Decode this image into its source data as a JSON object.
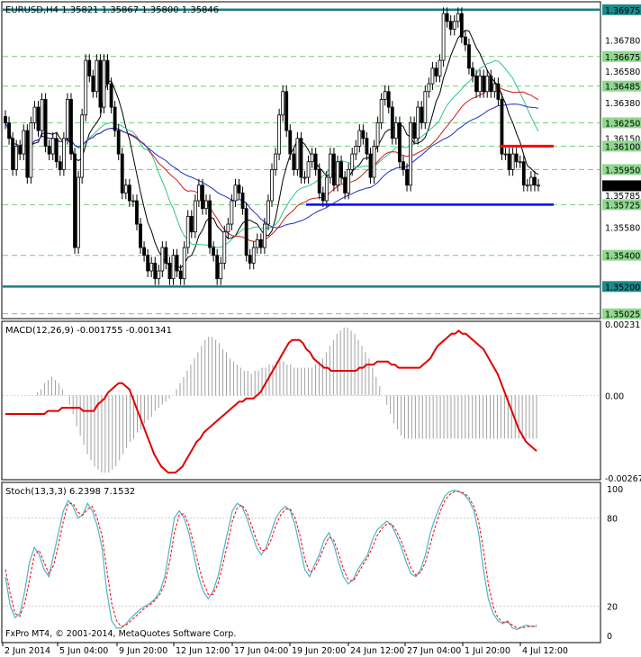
{
  "window": {
    "title": "EURUSD,H4  1.35821 1.35867 1.35800 1.35846"
  },
  "watermark": "FxPro MT4, © 2001-2014, MetaQuotes Software Corp.",
  "colors": {
    "bull": "#000000",
    "bear": "#000000",
    "ma_blue": "#1f2ec8",
    "ma_red": "#d11a1a",
    "ma_green": "#32c48a",
    "ma_black": "#000000",
    "level_teal": "#1b7d7d",
    "support_blue": "#0000ff",
    "resist_red": "#ff0000",
    "dashed_green": "#6fcf6f",
    "macd_line": "#e00000",
    "macd_hist": "#a0a0a0",
    "stoch_main": "#4fb3c8",
    "stoch_signal": "#ff0000",
    "price_box": "#1a8a8a"
  },
  "chart_data": [
    {
      "type": "candlestick",
      "symbol": "EURUSD",
      "timeframe": "H4",
      "last_ohlc": {
        "open": 1.35821,
        "high": 1.35867,
        "low": 1.358,
        "close": 1.35846
      },
      "ylim": [
        1.35,
        1.3702
      ],
      "price_axis_labels": [
        "1.36975",
        "1.36780",
        "1.36675",
        "1.36580",
        "1.36485",
        "1.36380",
        "1.36250",
        "1.36150",
        "1.36100",
        "1.35950",
        "1.35846",
        "1.35785",
        "1.35725",
        "1.35580",
        "1.35400",
        "1.35200",
        "1.35025"
      ],
      "highlighted_levels": [
        {
          "label": "1.36975",
          "price": 1.36975,
          "kind": "solid"
        },
        {
          "label": "1.36675",
          "price": 1.36675,
          "kind": "dashed"
        },
        {
          "label": "1.36485",
          "price": 1.36485,
          "kind": "dashed"
        },
        {
          "label": "1.36250",
          "price": 1.3625,
          "kind": "dashed"
        },
        {
          "label": "1.36100",
          "price": 1.361,
          "kind": "dashed"
        },
        {
          "label": "1.35950",
          "price": 1.3595,
          "kind": "dashed"
        },
        {
          "label": "1.35725",
          "price": 1.35725,
          "kind": "dashed"
        },
        {
          "label": "1.35400",
          "price": 1.354,
          "kind": "dashed"
        },
        {
          "label": "1.35200",
          "price": 1.352,
          "kind": "solid"
        },
        {
          "label": "1.35025",
          "price": 1.35025,
          "kind": "dashed"
        }
      ],
      "current_price_label": "1.35846",
      "support_line_price": 1.35725,
      "resistance_line_price": 1.361,
      "x_tick_labels": [
        "2 Jun 2014",
        "5 Jun 04:00",
        "9 Jun 20:00",
        "12 Jun 12:00",
        "17 Jun 04:00",
        "19 Jun 20:00",
        "24 Jun 12:00",
        "27 Jun 04:00",
        "1 Jul 20:00",
        "4 Jul 12:00"
      ],
      "closes": [
        1.3625,
        1.3615,
        1.3595,
        1.361,
        1.3605,
        1.362,
        1.359,
        1.3625,
        1.3635,
        1.362,
        1.364,
        1.361,
        1.3605,
        1.3615,
        1.36,
        1.3595,
        1.3615,
        1.364,
        1.3605,
        1.3545,
        1.359,
        1.363,
        1.3665,
        1.3655,
        1.3645,
        1.3665,
        1.3635,
        1.3665,
        1.365,
        1.3635,
        1.362,
        1.3605,
        1.358,
        1.3585,
        1.3575,
        1.3575,
        1.356,
        1.3545,
        1.354,
        1.353,
        1.3535,
        1.3525,
        1.353,
        1.3545,
        1.3535,
        1.3525,
        1.354,
        1.353,
        1.3525,
        1.3545,
        1.3565,
        1.3555,
        1.3575,
        1.3585,
        1.357,
        1.3575,
        1.3545,
        1.354,
        1.3525,
        1.3535,
        1.3555,
        1.356,
        1.3575,
        1.3585,
        1.358,
        1.357,
        1.354,
        1.3535,
        1.3545,
        1.355,
        1.3545,
        1.356,
        1.3575,
        1.3595,
        1.3605,
        1.363,
        1.3645,
        1.362,
        1.3605,
        1.3595,
        1.3615,
        1.359,
        1.359,
        1.36,
        1.3605,
        1.3595,
        1.358,
        1.3575,
        1.359,
        1.3605,
        1.3585,
        1.36,
        1.359,
        1.358,
        1.3595,
        1.3605,
        1.361,
        1.362,
        1.3615,
        1.3605,
        1.359,
        1.361,
        1.3625,
        1.364,
        1.3645,
        1.3635,
        1.3615,
        1.3625,
        1.36,
        1.3595,
        1.3585,
        1.3625,
        1.3615,
        1.3635,
        1.3625,
        1.3645,
        1.365,
        1.366,
        1.3655,
        1.3665,
        1.3695,
        1.369,
        1.3685,
        1.369,
        1.3695,
        1.368,
        1.3675,
        1.366,
        1.3655,
        1.3645,
        1.3655,
        1.3645,
        1.3655,
        1.3645,
        1.365,
        1.364,
        1.3605,
        1.3605,
        1.3595,
        1.3605,
        1.36,
        1.36,
        1.3585,
        1.3585,
        1.359,
        1.3585,
        1.3585
      ]
    },
    {
      "type": "line",
      "indicator": "MACD",
      "label": "MACD(12,26,9) -0.001755 -0.001341",
      "axis_labels": [
        "0.002316",
        "0.00",
        "-0.002671"
      ],
      "ylim": [
        -0.002671,
        0.002316
      ],
      "series": [
        {
          "values": [
            -0.0006,
            -0.0006,
            -0.0006,
            -0.0006,
            -0.0006,
            -0.0006,
            -0.0006,
            -0.0006,
            -0.0006,
            -0.0006,
            -0.0006,
            -0.0006,
            -0.0005,
            -0.0005,
            -0.0005,
            -0.0005,
            -0.0004,
            -0.0004,
            -0.0004,
            -0.0004,
            -0.0004,
            -0.0004,
            -0.0005,
            -0.0005,
            -0.0005,
            -0.0005,
            -0.0003,
            -0.0002,
            -0.0001,
            0.0001,
            0.0002,
            0.0003,
            0.0004,
            0.0004,
            0.0003,
            0.0002,
            -0.0001,
            -0.0004,
            -0.0007,
            -0.001,
            -0.0013,
            -0.0016,
            -0.0019,
            -0.0021,
            -0.0023,
            -0.0024,
            -0.0025,
            -0.0025,
            -0.0025,
            -0.0024,
            -0.0023,
            -0.0021,
            -0.0019,
            -0.0017,
            -0.0015,
            -0.0014,
            -0.0012,
            -0.0011,
            -0.001,
            -0.0009,
            -0.0008,
            -0.0007,
            -0.0006,
            -0.0005,
            -0.0004,
            -0.0003,
            -0.0002,
            -0.0002,
            -0.0001,
            -0.0001,
            -0.0001,
            0.0,
            0.0001,
            0.0003,
            0.0005,
            0.0007,
            0.0009,
            0.0011,
            0.0013,
            0.0015,
            0.0017,
            0.0018,
            0.0018,
            0.0018,
            0.0017,
            0.0015,
            0.0014,
            0.0012,
            0.0011,
            0.001,
            0.0009,
            0.0009,
            0.0008,
            0.0008,
            0.0008,
            0.0008,
            0.0008,
            0.0008,
            0.0008,
            0.0008,
            0.0009,
            0.0009,
            0.001,
            0.001,
            0.001,
            0.0011,
            0.0011,
            0.0011,
            0.0011,
            0.001,
            0.001,
            0.0009,
            0.0009,
            0.0009,
            0.0009,
            0.0009,
            0.0009,
            0.0009,
            0.001,
            0.0011,
            0.0012,
            0.0014,
            0.0016,
            0.0017,
            0.0018,
            0.0019,
            0.002,
            0.002,
            0.0021,
            0.002,
            0.002,
            0.0019,
            0.0018,
            0.0017,
            0.0016,
            0.0015,
            0.0013,
            0.0011,
            0.0009,
            0.0007,
            0.0004,
            0.0001,
            -0.0002,
            -0.0005,
            -0.0008,
            -0.0011,
            -0.0013,
            -0.0015,
            -0.0016,
            -0.0017,
            -0.0018
          ]
        },
        {
          "values": [
            0.0,
            0.0,
            0.0,
            0.0,
            0.0,
            0.0,
            0.0,
            0.0,
            0.0,
            0.0001,
            0.0002,
            0.0004,
            0.0005,
            0.0006,
            0.0005,
            0.0004,
            0.0002,
            0.0,
            -0.0003,
            -0.0006,
            -0.001,
            -0.0013,
            -0.0016,
            -0.0019,
            -0.0021,
            -0.0023,
            -0.0024,
            -0.0025,
            -0.0025,
            -0.0025,
            -0.0024,
            -0.0023,
            -0.0021,
            -0.0019,
            -0.0017,
            -0.0015,
            -0.0014,
            -0.0012,
            -0.0011,
            -0.0009,
            -0.0008,
            -0.0007,
            -0.0005,
            -0.0004,
            -0.0003,
            -0.0002,
            -0.0001,
            0.0,
            0.0002,
            0.0004,
            0.0006,
            0.0008,
            0.001,
            0.0012,
            0.0014,
            0.0016,
            0.0018,
            0.0019,
            0.0019,
            0.0018,
            0.0017,
            0.0015,
            0.0014,
            0.0012,
            0.0011,
            0.001,
            0.0009,
            0.0008,
            0.0008,
            0.0007,
            0.0008,
            0.0008,
            0.0009,
            0.0009,
            0.001,
            0.001,
            0.0011,
            0.0011,
            0.0011,
            0.001,
            0.001,
            0.0009,
            0.0009,
            0.0009,
            0.0009,
            0.0009,
            0.0009,
            0.001,
            0.0011,
            0.0012,
            0.0014,
            0.0016,
            0.0018,
            0.002,
            0.0021,
            0.0022,
            0.0022,
            0.0021,
            0.002,
            0.0018,
            0.0016,
            0.0014,
            0.0012,
            0.0009,
            0.0006,
            0.0003,
            0.0,
            -0.0003,
            -0.0006,
            -0.0009,
            -0.0011,
            -0.0013,
            -0.0014,
            -0.0014,
            -0.0014,
            -0.0014,
            -0.0014,
            -0.0014,
            -0.0014,
            -0.0014,
            -0.0014,
            -0.0014,
            -0.0014,
            -0.0014,
            -0.0014,
            -0.0014,
            -0.0014,
            -0.0014,
            -0.0014,
            -0.0014,
            -0.0014,
            -0.0014,
            -0.0014,
            -0.0014,
            -0.0014,
            -0.0014,
            -0.0014,
            -0.0014,
            -0.0014,
            -0.0014,
            -0.0014,
            -0.0014,
            -0.0014,
            -0.0014,
            -0.0014,
            -0.0014,
            -0.0014,
            -0.0014,
            -0.0014,
            -0.0014
          ]
        }
      ]
    },
    {
      "type": "line",
      "indicator": "Stochastic",
      "label": "Stoch(13,3,3) 6.2398 7.1532",
      "axis_labels": [
        "100",
        "80",
        "20",
        "0"
      ],
      "ylim": [
        0,
        100
      ],
      "series": [
        {
          "values": [
            40,
            20,
            12,
            15,
            30,
            50,
            60,
            55,
            45,
            40,
            55,
            70,
            85,
            92,
            88,
            80,
            82,
            90,
            85,
            75,
            60,
            30,
            10,
            5,
            5,
            8,
            12,
            15,
            18,
            20,
            22,
            25,
            30,
            40,
            60,
            80,
            85,
            80,
            70,
            55,
            40,
            30,
            25,
            30,
            40,
            55,
            70,
            85,
            90,
            88,
            80,
            70,
            60,
            55,
            60,
            70,
            80,
            85,
            88,
            85,
            75,
            60,
            45,
            40,
            48,
            55,
            65,
            70,
            62,
            50,
            40,
            35,
            38,
            45,
            50,
            55,
            65,
            72,
            75,
            78,
            75,
            68,
            60,
            50,
            42,
            40,
            45,
            55,
            70,
            80,
            88,
            95,
            98,
            99,
            98,
            96,
            92,
            85,
            70,
            45,
            25,
            15,
            10,
            8,
            10,
            5,
            4,
            6,
            7,
            6,
            6
          ]
        },
        {
          "values": [
            45,
            28,
            15,
            13,
            22,
            38,
            55,
            58,
            50,
            42,
            48,
            62,
            78,
            90,
            90,
            84,
            82,
            86,
            88,
            80,
            68,
            45,
            22,
            10,
            6,
            7,
            10,
            13,
            16,
            19,
            21,
            24,
            28,
            35,
            50,
            70,
            82,
            83,
            75,
            62,
            48,
            36,
            28,
            28,
            35,
            48,
            62,
            78,
            87,
            89,
            84,
            75,
            65,
            58,
            58,
            65,
            75,
            82,
            86,
            86,
            80,
            68,
            52,
            43,
            45,
            52,
            60,
            67,
            65,
            56,
            45,
            38,
            37,
            42,
            48,
            53,
            60,
            68,
            73,
            76,
            76,
            71,
            64,
            55,
            46,
            41,
            43,
            50,
            62,
            74,
            84,
            92,
            96,
            98,
            98,
            97,
            94,
            88,
            78,
            58,
            35,
            20,
            12,
            9,
            9,
            7,
            5,
            5,
            6,
            6,
            7
          ]
        }
      ]
    }
  ]
}
